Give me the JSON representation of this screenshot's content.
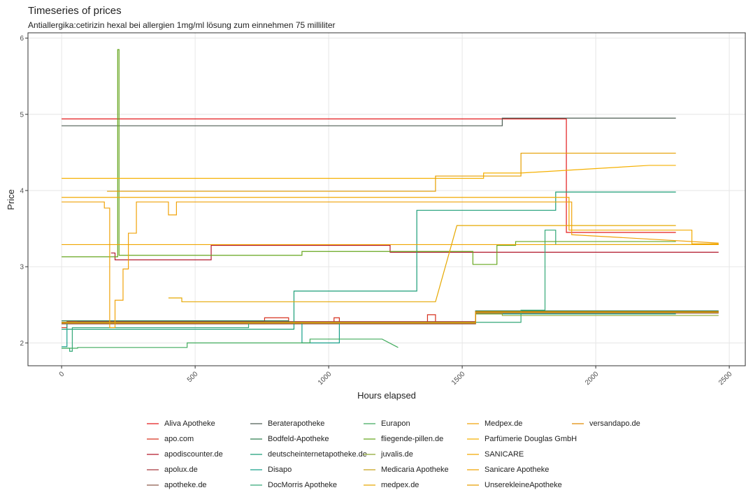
{
  "chart_data": {
    "type": "line",
    "title": "Timeseries of prices",
    "subtitle": "Antiallergika:cetirizin hexal bei allergien 1mg/ml lösung zum einnehmen 75 milliliter",
    "x_label": "Hours elapsed",
    "y_label": "Price",
    "xlim": [
      -126,
      2560
    ],
    "ylim": [
      1.7,
      6.07
    ],
    "xticks": [
      0,
      500,
      1000,
      1500,
      2000,
      2500
    ],
    "yticks": [
      2,
      3,
      4,
      5,
      6
    ],
    "grid": true,
    "legend": "bottom",
    "series": [
      {
        "name": "Aliva Apotheke",
        "color": "#e31a1c",
        "x": [
          0,
          1890,
          1890,
          2300
        ],
        "values": [
          4.94,
          4.94,
          3.45,
          3.45
        ]
      },
      {
        "name": "apo.com",
        "color": "#d7301f",
        "x": [
          0,
          20,
          20,
          760,
          760,
          850,
          850,
          1020,
          1020,
          1040,
          1040,
          1370,
          1370,
          1400,
          1400,
          1550,
          1550,
          2460
        ],
        "values": [
          2.2,
          2.2,
          2.28,
          2.28,
          2.33,
          2.33,
          2.27,
          2.27,
          2.33,
          2.33,
          2.27,
          2.27,
          2.37,
          2.37,
          2.27,
          2.27,
          2.41,
          2.41
        ]
      },
      {
        "name": "apodiscounter.de",
        "color": "#b2182b",
        "x": [
          185,
          200,
          200,
          560,
          560,
          1230,
          1230,
          2460
        ],
        "values": [
          3.18,
          3.18,
          3.09,
          3.09,
          3.28,
          3.28,
          3.19,
          3.19
        ]
      },
      {
        "name": "apolux.de",
        "color": "#a6373f",
        "x": [
          0,
          60,
          60,
          1550,
          1550,
          2460
        ],
        "values": [
          2.27,
          2.27,
          2.28,
          2.28,
          2.4,
          2.4
        ]
      },
      {
        "name": "apotheke.de",
        "color": "#8c5a4b",
        "x": [
          0,
          1550,
          1550,
          2460
        ],
        "values": [
          2.25,
          2.25,
          2.39,
          2.39
        ]
      },
      {
        "name": "Beraterapotheke",
        "color": "#4d5d53",
        "x": [
          0,
          1650,
          1650,
          2300
        ],
        "values": [
          4.85,
          4.85,
          4.95,
          4.95
        ]
      },
      {
        "name": "Bodfeld-Apotheke",
        "color": "#2e7d4f",
        "x": [
          0,
          850,
          850,
          1550,
          1550,
          2460
        ],
        "values": [
          2.29,
          2.29,
          2.26,
          2.26,
          2.42,
          2.42
        ]
      },
      {
        "name": "deutscheinternetapotheke.de",
        "color": "#1b9e77",
        "x": [
          0,
          870,
          870,
          1330,
          1330,
          1850,
          1850,
          2300
        ],
        "values": [
          2.18,
          2.18,
          2.68,
          2.68,
          3.74,
          3.74,
          3.98,
          3.98
        ]
      },
      {
        "name": "Disapo",
        "color": "#17a08a",
        "x": [
          0,
          20,
          20,
          900,
          900,
          1040,
          1040,
          1550,
          1550,
          2300
        ],
        "values": [
          1.95,
          1.95,
          2.27,
          2.27,
          2.0,
          2.0,
          2.27,
          2.27,
          2.38,
          2.38
        ]
      },
      {
        "name": "DocMorris Apotheke",
        "color": "#33a877",
        "x": [
          0,
          30,
          30,
          40,
          40,
          700,
          700,
          1720,
          1720,
          1810,
          1810,
          1850,
          1850,
          2040,
          2040,
          2460
        ],
        "values": [
          1.93,
          1.93,
          1.89,
          1.89,
          2.2,
          2.2,
          2.27,
          2.27,
          2.43,
          2.43,
          3.48,
          3.48,
          3.29,
          3.29,
          3.29,
          3.29
        ]
      },
      {
        "name": "Eurapon",
        "color": "#41ab5d",
        "x": [
          0,
          60,
          60,
          470,
          470,
          930,
          930,
          1200,
          1260
        ],
        "values": [
          1.93,
          1.93,
          1.94,
          1.94,
          2.0,
          2.0,
          2.05,
          2.05,
          1.94
        ]
      },
      {
        "name": "fliegende-pillen.de",
        "color": "#66a61e",
        "x": [
          0,
          210,
          210,
          215,
          215,
          900,
          900,
          1540,
          1540,
          1630,
          1630,
          1700,
          1700,
          2300
        ],
        "values": [
          3.13,
          3.13,
          5.85,
          5.85,
          3.15,
          3.15,
          3.2,
          3.2,
          3.03,
          3.03,
          3.28,
          3.28,
          3.33,
          3.33
        ]
      },
      {
        "name": "juvalis.de",
        "color": "#8da832",
        "x": [
          0,
          1550,
          1550,
          1650,
          1650,
          2460
        ],
        "values": [
          2.26,
          2.26,
          2.38,
          2.38,
          2.36,
          2.36
        ]
      },
      {
        "name": "Medicaria Apotheke",
        "color": "#c8a21a",
        "x": [
          0,
          1550,
          1550,
          2460
        ],
        "values": [
          2.27,
          2.27,
          2.4,
          2.4
        ]
      },
      {
        "name": "medpex.de",
        "color": "#e6a800",
        "x": [
          400,
          450,
          450,
          1400,
          1480,
          2300
        ],
        "values": [
          2.59,
          2.59,
          2.54,
          2.54,
          3.54,
          3.54
        ]
      },
      {
        "name": "Medpex.de",
        "color": "#f0a30a",
        "x": [
          0,
          160,
          160,
          180,
          180,
          200,
          200,
          230,
          230,
          250,
          250,
          280,
          280,
          400,
          400,
          430,
          430,
          1910,
          1910,
          2460
        ],
        "values": [
          3.85,
          3.85,
          3.77,
          3.77,
          2.2,
          2.2,
          2.56,
          2.56,
          2.97,
          2.97,
          3.44,
          3.44,
          3.85,
          3.85,
          3.68,
          3.68,
          3.85,
          3.85,
          3.42,
          3.31
        ]
      },
      {
        "name": "Parfümerie Douglas GmbH",
        "color": "#f5b000",
        "x": [
          0,
          1580,
          1580,
          1720,
          2200,
          2300
        ],
        "values": [
          4.16,
          4.16,
          4.23,
          4.23,
          4.33,
          4.33
        ]
      },
      {
        "name": "SANICARE",
        "color": "#f2a900",
        "x": [
          0,
          1900,
          1900,
          2360,
          2360,
          2460
        ],
        "values": [
          3.91,
          3.91,
          3.48,
          3.48,
          3.3,
          3.3
        ]
      },
      {
        "name": "Sanicare Apotheke",
        "color": "#f0a500",
        "x": [
          0,
          2460
        ],
        "values": [
          3.29,
          3.29
        ]
      },
      {
        "name": "UnserekleineApotheke",
        "color": "#e69f00",
        "x": [
          170,
          1400,
          1400,
          1720,
          1720,
          2300
        ],
        "values": [
          3.99,
          3.99,
          4.19,
          4.19,
          4.49,
          4.49
        ]
      },
      {
        "name": "versandapo.de",
        "color": "#e08a00",
        "x": [
          0,
          1550,
          1550,
          2460
        ],
        "values": [
          2.26,
          2.26,
          2.41,
          2.41
        ]
      }
    ]
  }
}
